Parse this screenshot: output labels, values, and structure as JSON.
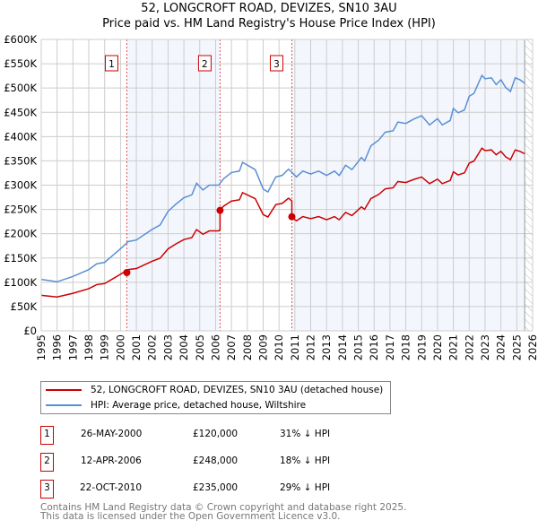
{
  "title": "52, LONGCROFT ROAD, DEVIZES, SN10 3AU",
  "subtitle": "Price paid vs. HM Land Registry's House Price Index (HPI)",
  "chart_data": {
    "type": "line",
    "title": "52, LONGCROFT ROAD, DEVIZES, SN10 3AU",
    "subtitle": "Price paid vs. HM Land Registry's House Price Index (HPI)",
    "xlim": [
      1995,
      2026
    ],
    "ylim": [
      0,
      600000
    ],
    "x_ticks": [
      "1995",
      "1996",
      "1997",
      "1998",
      "1999",
      "2000",
      "2001",
      "2002",
      "2003",
      "2004",
      "2005",
      "2006",
      "2007",
      "2008",
      "2009",
      "2010",
      "2011",
      "2012",
      "2013",
      "2014",
      "2015",
      "2016",
      "2017",
      "2018",
      "2019",
      "2020",
      "2021",
      "2022",
      "2023",
      "2024",
      "2025",
      "2026"
    ],
    "y_ticks": [
      "£0",
      "£50K",
      "£100K",
      "£150K",
      "£200K",
      "£250K",
      "£300K",
      "£350K",
      "£400K",
      "£450K",
      "£500K",
      "£550K",
      "£600K"
    ],
    "grid": true,
    "hpi_series": {
      "name": "HPI: Average price, detached house, Wiltshire",
      "color": "#5b8fd4",
      "x": [
        1995,
        1996,
        1997,
        1998,
        1998.5,
        1999,
        2000,
        2000.5,
        2001,
        2002,
        2002.5,
        2003,
        2003.5,
        2004,
        2004.5,
        2004.8,
        2005.2,
        2005.6,
        2006.2,
        2006.5,
        2007,
        2007.5,
        2007.7,
        2008.5,
        2009,
        2009.3,
        2009.8,
        2010.2,
        2010.6,
        2011.1,
        2011.5,
        2012,
        2012.5,
        2013,
        2013.5,
        2013.8,
        2014.2,
        2014.6,
        2015.2,
        2015.4,
        2015.8,
        2016.3,
        2016.7,
        2017.2,
        2017.5,
        2018,
        2018.5,
        2019,
        2019.5,
        2020,
        2020.3,
        2020.8,
        2021,
        2021.3,
        2021.7,
        2022,
        2022.3,
        2022.8,
        2023,
        2023.4,
        2023.7,
        2024,
        2024.3,
        2024.6,
        2024.9,
        2025.2,
        2025.5
      ],
      "y": [
        106000,
        101000,
        112000,
        126000,
        138000,
        141000,
        169000,
        184000,
        187000,
        209000,
        218000,
        246000,
        261000,
        274000,
        280000,
        304000,
        290000,
        300000,
        300000,
        313000,
        326000,
        329000,
        347000,
        332000,
        292000,
        286000,
        317000,
        320000,
        333000,
        317000,
        329000,
        323000,
        329000,
        320000,
        329000,
        320000,
        341000,
        332000,
        357000,
        350000,
        381000,
        393000,
        409000,
        412000,
        430000,
        427000,
        436000,
        443000,
        424000,
        437000,
        424000,
        433000,
        458000,
        449000,
        455000,
        483000,
        489000,
        526000,
        519000,
        521000,
        507000,
        517000,
        501000,
        493000,
        521000,
        517000,
        510000
      ]
    },
    "price_series": {
      "name": "52, LONGCROFT ROAD, DEVIZES, SN10 3AU (detached house)",
      "color": "#cc0000",
      "segments": [
        {
          "from": 1995,
          "to": 2000.4,
          "ratio_to_hpi": 0.69
        },
        {
          "from": 2000.4,
          "to": 2006.28,
          "ratio_to_hpi": 0.686
        },
        {
          "from": 2006.28,
          "to": 2010.81,
          "ratio_to_hpi": 0.82
        },
        {
          "from": 2010.81,
          "to": 2025.5,
          "ratio_to_hpi": 0.715
        }
      ]
    },
    "sales": [
      {
        "label": "1",
        "x": 2000.4,
        "y": 120000
      },
      {
        "label": "2",
        "x": 2006.28,
        "y": 248000
      },
      {
        "label": "3",
        "x": 2010.81,
        "y": 235000
      }
    ],
    "forecast_hatch_from": 2025.5
  },
  "legend": [
    {
      "label": "52, LONGCROFT ROAD, DEVIZES, SN10 3AU (detached house)",
      "color": "#cc0000"
    },
    {
      "label": "HPI: Average price, detached house, Wiltshire",
      "color": "#5b8fd4"
    }
  ],
  "table": [
    {
      "n": "1",
      "date": "26-MAY-2000",
      "price": "£120,000",
      "hpi": "31% ↓ HPI"
    },
    {
      "n": "2",
      "date": "12-APR-2006",
      "price": "£248,000",
      "hpi": "18% ↓ HPI"
    },
    {
      "n": "3",
      "date": "22-OCT-2010",
      "price": "£235,000",
      "hpi": "29% ↓ HPI"
    }
  ],
  "footer": [
    "Contains HM Land Registry data © Crown copyright and database right 2025.",
    "This data is licensed under the Open Government Licence v3.0."
  ]
}
